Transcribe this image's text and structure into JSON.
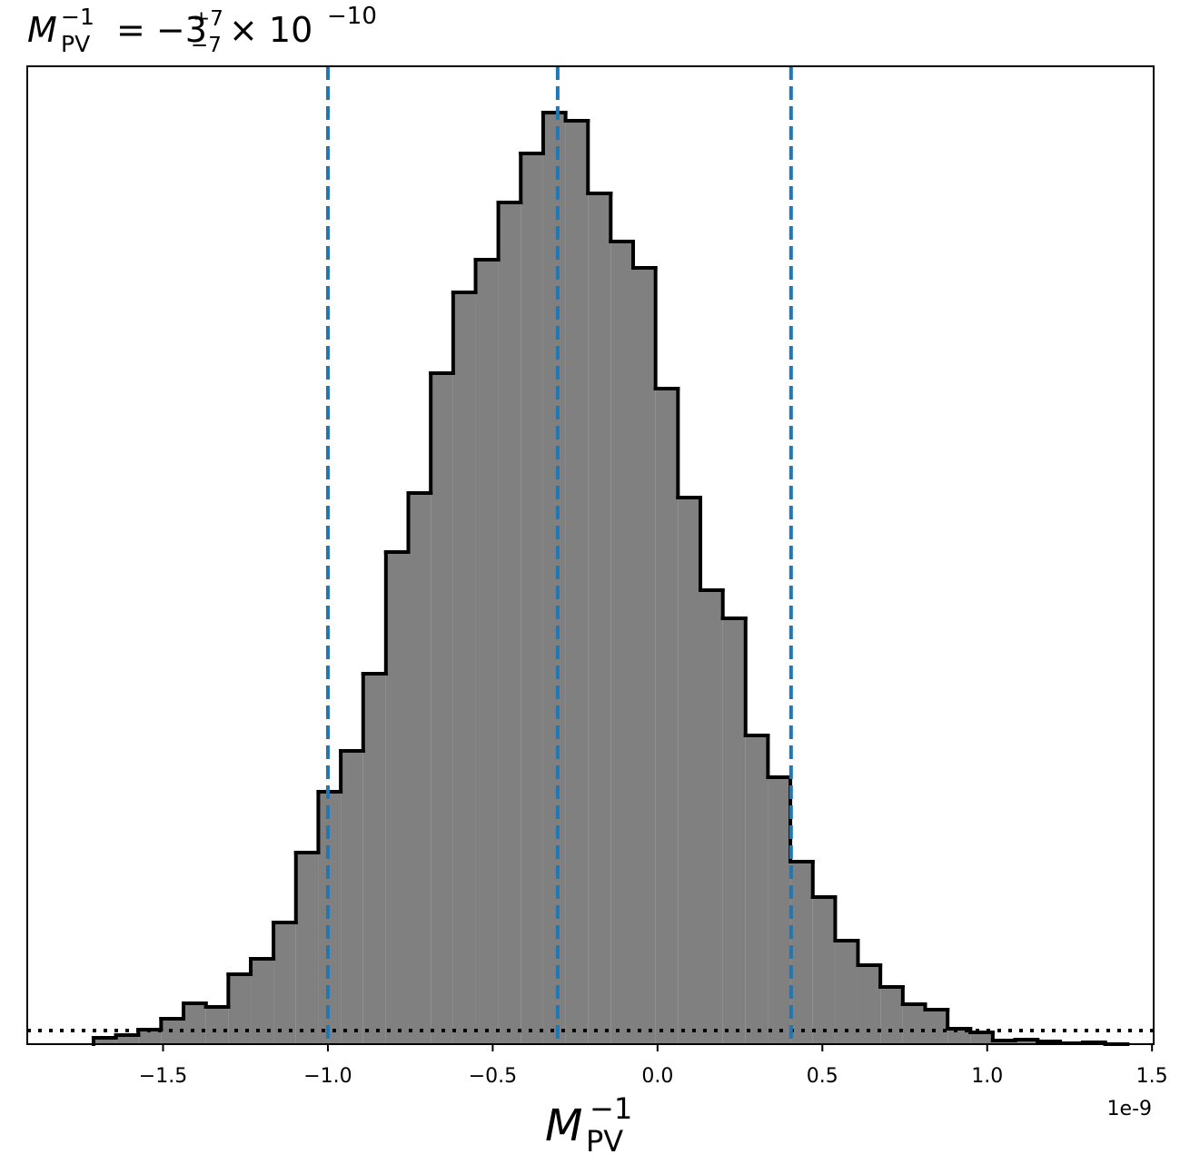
{
  "chart_data": {
    "type": "histogram",
    "title": {
      "symbol": "M",
      "sub": "PV",
      "sup": "−1",
      "equals": "= −3",
      "upper_err": "+7",
      "lower_err": "−7",
      "times": "× 10",
      "exponent": "−10"
    },
    "xlabel": {
      "symbol": "M",
      "sub": "PV",
      "sup": "−1"
    },
    "offset_text": "1e-9",
    "bins": [
      -1.711,
      -1.643,
      -1.575,
      -1.506,
      -1.438,
      -1.37,
      -1.302,
      -1.234,
      -1.165,
      -1.097,
      -1.029,
      -0.961,
      -0.893,
      -0.824,
      -0.756,
      -0.688,
      -0.62,
      -0.552,
      -0.483,
      -0.415,
      -0.347,
      -0.279,
      -0.211,
      -0.142,
      -0.074,
      -0.006,
      0.062,
      0.13,
      0.198,
      0.267,
      0.335,
      0.403,
      0.471,
      0.539,
      0.608,
      0.676,
      0.744,
      0.812,
      0.88,
      0.949,
      1.017,
      1.085,
      1.153,
      1.221,
      1.29,
      1.358,
      1.426
    ],
    "counts": [
      7,
      10,
      16,
      28,
      45,
      41,
      77,
      94,
      134,
      211,
      278,
      323,
      408,
      542,
      607,
      739,
      828,
      864,
      927,
      981,
      1026,
      1017,
      937,
      884,
      855,
      722,
      602,
      500,
      469,
      340,
      294,
      201,
      162,
      114,
      87,
      63,
      44,
      38,
      17,
      13,
      4,
      5,
      3,
      1,
      2,
      0
    ],
    "color": "#808080",
    "edgecolor": "#000000",
    "xlim": [
      -1.912,
      1.505
    ],
    "ylim": [
      0,
      1077
    ],
    "xticks": [
      {
        "value": -1.5,
        "label": "−1.5"
      },
      {
        "value": -1.0,
        "label": "−1.0"
      },
      {
        "value": -0.5,
        "label": "−0.5"
      },
      {
        "value": 0.0,
        "label": "0.0"
      },
      0.5,
      {
        "value": 1.0,
        "label": "1.0"
      },
      1.5
    ],
    "vlines": {
      "values": [
        -1.0,
        -0.303,
        0.405
      ],
      "color": "#1f77b4"
    },
    "hline": {
      "value": 15,
      "color": "#000000"
    }
  }
}
